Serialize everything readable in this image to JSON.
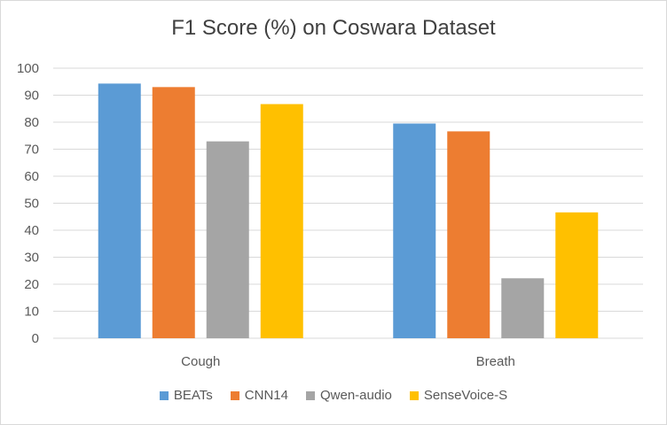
{
  "chart_data": {
    "type": "bar",
    "title": "F1 Score (%) on Coswara Dataset",
    "categories": [
      "Cough",
      "Breath"
    ],
    "series": [
      {
        "name": "BEATs",
        "color": "#5b9bd5",
        "values": [
          94.3,
          79.5
        ]
      },
      {
        "name": "CNN14",
        "color": "#ed7d31",
        "values": [
          93.0,
          76.6
        ]
      },
      {
        "name": "Qwen-audio",
        "color": "#a5a5a5",
        "values": [
          72.9,
          22.2
        ]
      },
      {
        "name": "SenseVoice-S",
        "color": "#ffc000",
        "values": [
          86.7,
          46.6
        ]
      }
    ],
    "ylim": [
      0,
      100
    ],
    "yticks": [
      "0",
      "10",
      "20",
      "30",
      "40",
      "50",
      "60",
      "70",
      "80",
      "90",
      "100"
    ],
    "grid": true,
    "legend_position": "bottom"
  }
}
